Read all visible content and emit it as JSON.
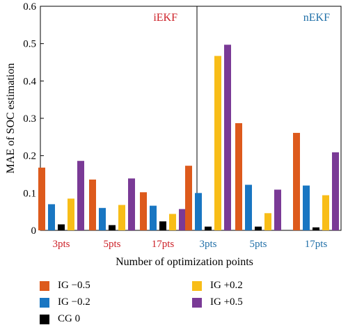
{
  "chart_data": {
    "type": "bar",
    "title": "",
    "xlabel": "Number of optimization points",
    "ylabel": "MAE of SOC estimation",
    "ylim": [
      0,
      0.6
    ],
    "yticks": [
      "0",
      "0.1",
      "0.2",
      "0.3",
      "0.4",
      "0.5",
      "0.6"
    ],
    "grid": false,
    "legend_position": "bottom",
    "panels": [
      {
        "label": "iEKF",
        "color": "#cc1f26"
      },
      {
        "label": "nEKF",
        "color": "#1f6fa8"
      }
    ],
    "categories": [
      "3pts",
      "5pts",
      "17pts",
      "3pts",
      "5pts",
      "17pts"
    ],
    "category_panels": [
      0,
      0,
      0,
      1,
      1,
      1
    ],
    "series": [
      {
        "name": "IG −0.5",
        "color": "#dd5a1c",
        "values": [
          0.168,
          0.136,
          0.102,
          0.173,
          0.287,
          0.261
        ]
      },
      {
        "name": "IG −0.2",
        "color": "#1976c2",
        "values": [
          0.07,
          0.06,
          0.066,
          0.1,
          0.122,
          0.12
        ]
      },
      {
        "name": "CG 0",
        "color": "#000000",
        "values": [
          0.016,
          0.014,
          0.024,
          0.01,
          0.01,
          0.008
        ]
      },
      {
        "name": "IG +0.2",
        "color": "#f8bd18",
        "values": [
          0.085,
          0.068,
          0.044,
          0.467,
          0.046,
          0.094
        ]
      },
      {
        "name": "IG +0.5",
        "color": "#7a3a96",
        "values": [
          0.186,
          0.139,
          0.057,
          0.497,
          0.109,
          0.209
        ]
      }
    ]
  }
}
